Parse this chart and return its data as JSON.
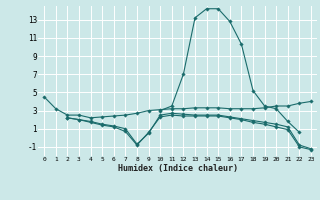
{
  "xlabel": "Humidex (Indice chaleur)",
  "bg_color": "#cce8e8",
  "grid_color": "#ffffff",
  "line_color": "#1a6b6b",
  "xlim": [
    -0.5,
    23.5
  ],
  "ylim": [
    -2.0,
    14.5
  ],
  "xticks": [
    0,
    1,
    2,
    3,
    4,
    5,
    6,
    7,
    8,
    9,
    10,
    11,
    12,
    13,
    14,
    15,
    16,
    17,
    18,
    19,
    20,
    21,
    22,
    23
  ],
  "yticks": [
    -1,
    1,
    3,
    5,
    7,
    9,
    11,
    13
  ],
  "series": [
    {
      "x": [
        0,
        1,
        2,
        3,
        4,
        5,
        6,
        7,
        8,
        9,
        10,
        11,
        12,
        13,
        14,
        15,
        16,
        17,
        18,
        19,
        20,
        21,
        22,
        23
      ],
      "y": [
        4.5,
        3.2,
        2.5,
        2.5,
        2.2,
        2.3,
        2.4,
        2.5,
        2.7,
        3.0,
        3.1,
        3.2,
        3.2,
        3.3,
        3.3,
        3.3,
        3.2,
        3.2,
        3.2,
        3.3,
        3.5,
        3.5,
        3.8,
        4.0
      ]
    },
    {
      "x": [
        2,
        3,
        4,
        5,
        6,
        7,
        8,
        9,
        10,
        11,
        12,
        13,
        14,
        15,
        16,
        17,
        18,
        19,
        20,
        21,
        22,
        23
      ],
      "y": [
        2.2,
        2.0,
        1.8,
        1.5,
        1.3,
        1.0,
        -0.7,
        0.5,
        2.5,
        2.7,
        2.6,
        2.5,
        2.5,
        2.5,
        2.3,
        2.1,
        1.9,
        1.7,
        1.5,
        1.2,
        -0.8,
        -1.2
      ]
    },
    {
      "x": [
        2,
        3,
        4,
        5,
        6,
        7,
        8,
        9,
        10,
        11,
        12,
        13,
        14,
        15,
        16,
        17,
        18,
        19,
        20,
        21,
        22,
        23
      ],
      "y": [
        2.2,
        2.0,
        1.7,
        1.4,
        1.2,
        0.7,
        -0.8,
        0.6,
        2.3,
        2.5,
        2.4,
        2.4,
        2.4,
        2.4,
        2.2,
        2.0,
        1.7,
        1.5,
        1.2,
        0.9,
        -1.0,
        -1.3
      ]
    },
    {
      "x": [
        10,
        11,
        12,
        13,
        14,
        15,
        16,
        17,
        18,
        19,
        20,
        21,
        22
      ],
      "y": [
        3.0,
        3.5,
        7.0,
        13.2,
        14.2,
        14.2,
        12.8,
        10.3,
        5.2,
        3.5,
        3.2,
        1.8,
        0.6
      ]
    }
  ]
}
